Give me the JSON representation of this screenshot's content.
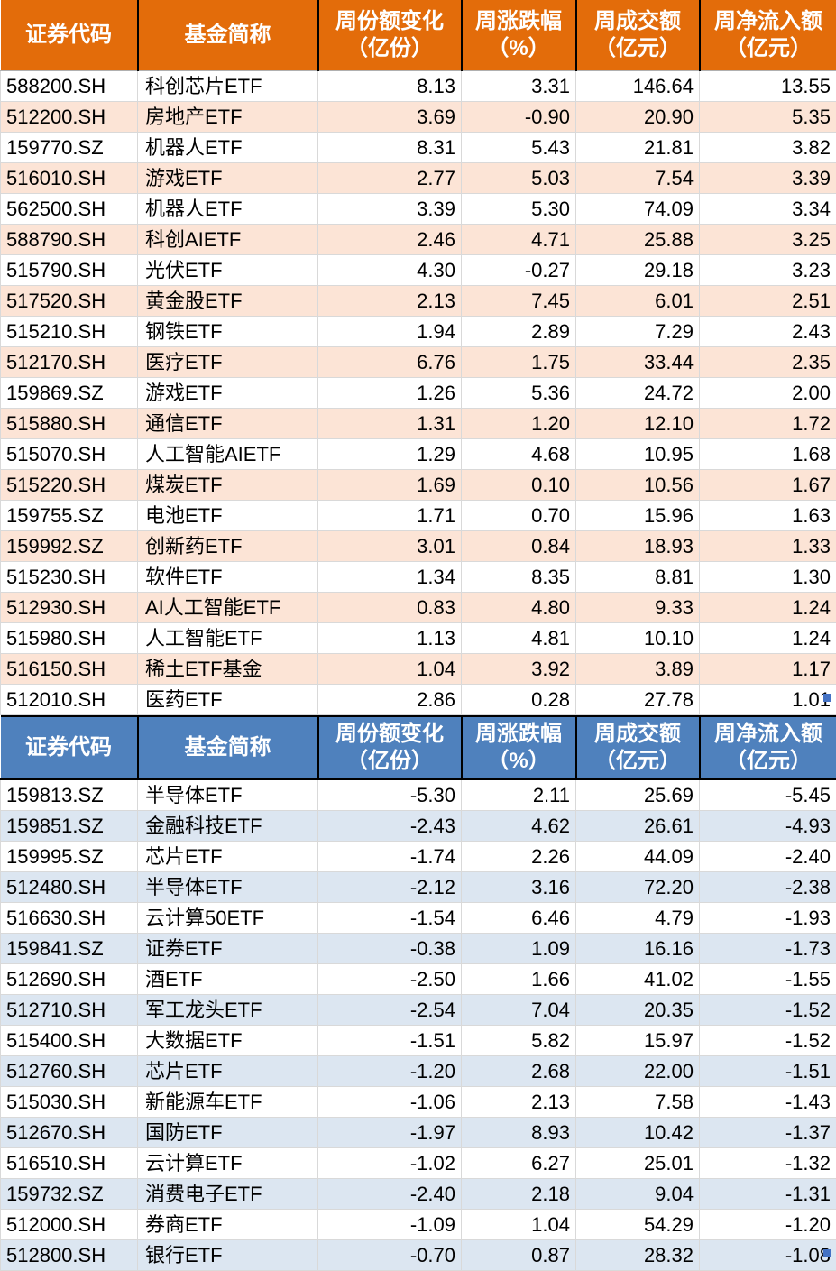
{
  "columns": [
    {
      "key": "code",
      "label": "证券代码",
      "unit": ""
    },
    {
      "key": "fund-name",
      "label": "基金简称",
      "unit": ""
    },
    {
      "key": "share-change",
      "label": "周份额变化",
      "unit": "（亿份）"
    },
    {
      "key": "pct-change",
      "label": "周涨跌幅",
      "unit": "（%）"
    },
    {
      "key": "turnover",
      "label": "周成交额",
      "unit": "（亿元）"
    },
    {
      "key": "net-inflow",
      "label": "周净流入额",
      "unit": "（亿元）"
    }
  ],
  "colors": {
    "inflow_header_bg": "#E36C0A",
    "inflow_row_alt_bg": "#FCE4D6",
    "outflow_header_bg": "#4F81BD",
    "outflow_row_alt_bg": "#DCE6F1",
    "header_text": "#FFFFFF",
    "body_text": "#000000",
    "gridline": "#D9D9D9",
    "header_divider": "#000000",
    "selection_handle": "#4472C4"
  },
  "tables": [
    {
      "name": "weekly-net-inflow",
      "rows": [
        [
          "588200.SH",
          "科创芯片ETF",
          "8.13",
          "3.31",
          "146.64",
          "13.55"
        ],
        [
          "512200.SH",
          "房地产ETF",
          "3.69",
          "-0.90",
          "20.90",
          "5.35"
        ],
        [
          "159770.SZ",
          "机器人ETF",
          "8.31",
          "5.43",
          "21.81",
          "3.82"
        ],
        [
          "516010.SH",
          "游戏ETF",
          "2.77",
          "5.03",
          "7.54",
          "3.39"
        ],
        [
          "562500.SH",
          "机器人ETF",
          "3.39",
          "5.30",
          "74.09",
          "3.34"
        ],
        [
          "588790.SH",
          "科创AIETF",
          "2.46",
          "4.71",
          "25.88",
          "3.25"
        ],
        [
          "515790.SH",
          "光伏ETF",
          "4.30",
          "-0.27",
          "29.18",
          "3.23"
        ],
        [
          "517520.SH",
          "黄金股ETF",
          "2.13",
          "7.45",
          "6.01",
          "2.51"
        ],
        [
          "515210.SH",
          "钢铁ETF",
          "1.94",
          "2.89",
          "7.29",
          "2.43"
        ],
        [
          "512170.SH",
          "医疗ETF",
          "6.76",
          "1.75",
          "33.44",
          "2.35"
        ],
        [
          "159869.SZ",
          "游戏ETF",
          "1.26",
          "5.36",
          "24.72",
          "2.00"
        ],
        [
          "515880.SH",
          "通信ETF",
          "1.31",
          "1.20",
          "12.10",
          "1.72"
        ],
        [
          "515070.SH",
          "人工智能AIETF",
          "1.29",
          "4.68",
          "10.95",
          "1.68"
        ],
        [
          "515220.SH",
          "煤炭ETF",
          "1.69",
          "0.10",
          "10.56",
          "1.67"
        ],
        [
          "159755.SZ",
          "电池ETF",
          "1.71",
          "0.70",
          "15.96",
          "1.63"
        ],
        [
          "159992.SZ",
          "创新药ETF",
          "3.01",
          "0.84",
          "18.93",
          "1.33"
        ],
        [
          "515230.SH",
          "软件ETF",
          "1.34",
          "8.35",
          "8.81",
          "1.30"
        ],
        [
          "512930.SH",
          "AI人工智能ETF",
          "0.83",
          "4.80",
          "9.33",
          "1.24"
        ],
        [
          "515980.SH",
          "人工智能ETF",
          "1.13",
          "4.81",
          "10.10",
          "1.24"
        ],
        [
          "516150.SH",
          "稀土ETF基金",
          "1.04",
          "3.92",
          "3.89",
          "1.17"
        ],
        [
          "512010.SH",
          "医药ETF",
          "2.86",
          "0.28",
          "27.78",
          "1.01"
        ]
      ]
    },
    {
      "name": "weekly-net-outflow",
      "rows": [
        [
          "159813.SZ",
          "半导体ETF",
          "-5.30",
          "2.11",
          "25.69",
          "-5.45"
        ],
        [
          "159851.SZ",
          "金融科技ETF",
          "-2.43",
          "4.62",
          "26.61",
          "-4.93"
        ],
        [
          "159995.SZ",
          "芯片ETF",
          "-1.74",
          "2.26",
          "44.09",
          "-2.40"
        ],
        [
          "512480.SH",
          "半导体ETF",
          "-2.12",
          "3.16",
          "72.20",
          "-2.38"
        ],
        [
          "516630.SH",
          "云计算50ETF",
          "-1.54",
          "6.46",
          "4.79",
          "-1.93"
        ],
        [
          "159841.SZ",
          "证券ETF",
          "-0.38",
          "1.09",
          "16.16",
          "-1.73"
        ],
        [
          "512690.SH",
          "酒ETF",
          "-2.50",
          "1.66",
          "41.02",
          "-1.55"
        ],
        [
          "512710.SH",
          "军工龙头ETF",
          "-2.54",
          "7.04",
          "20.35",
          "-1.52"
        ],
        [
          "515400.SH",
          "大数据ETF",
          "-1.51",
          "5.82",
          "15.97",
          "-1.52"
        ],
        [
          "512760.SH",
          "芯片ETF",
          "-1.20",
          "2.68",
          "22.00",
          "-1.51"
        ],
        [
          "515030.SH",
          "新能源车ETF",
          "-1.06",
          "2.13",
          "7.58",
          "-1.43"
        ],
        [
          "512670.SH",
          "国防ETF",
          "-1.97",
          "8.93",
          "10.42",
          "-1.37"
        ],
        [
          "516510.SH",
          "云计算ETF",
          "-1.02",
          "6.27",
          "25.01",
          "-1.32"
        ],
        [
          "159732.SZ",
          "消费电子ETF",
          "-2.40",
          "2.18",
          "9.04",
          "-1.31"
        ],
        [
          "512000.SH",
          "券商ETF",
          "-1.09",
          "1.04",
          "54.29",
          "-1.20"
        ],
        [
          "512800.SH",
          "银行ETF",
          "-0.70",
          "0.87",
          "28.32",
          "-1.08"
        ]
      ]
    }
  ]
}
